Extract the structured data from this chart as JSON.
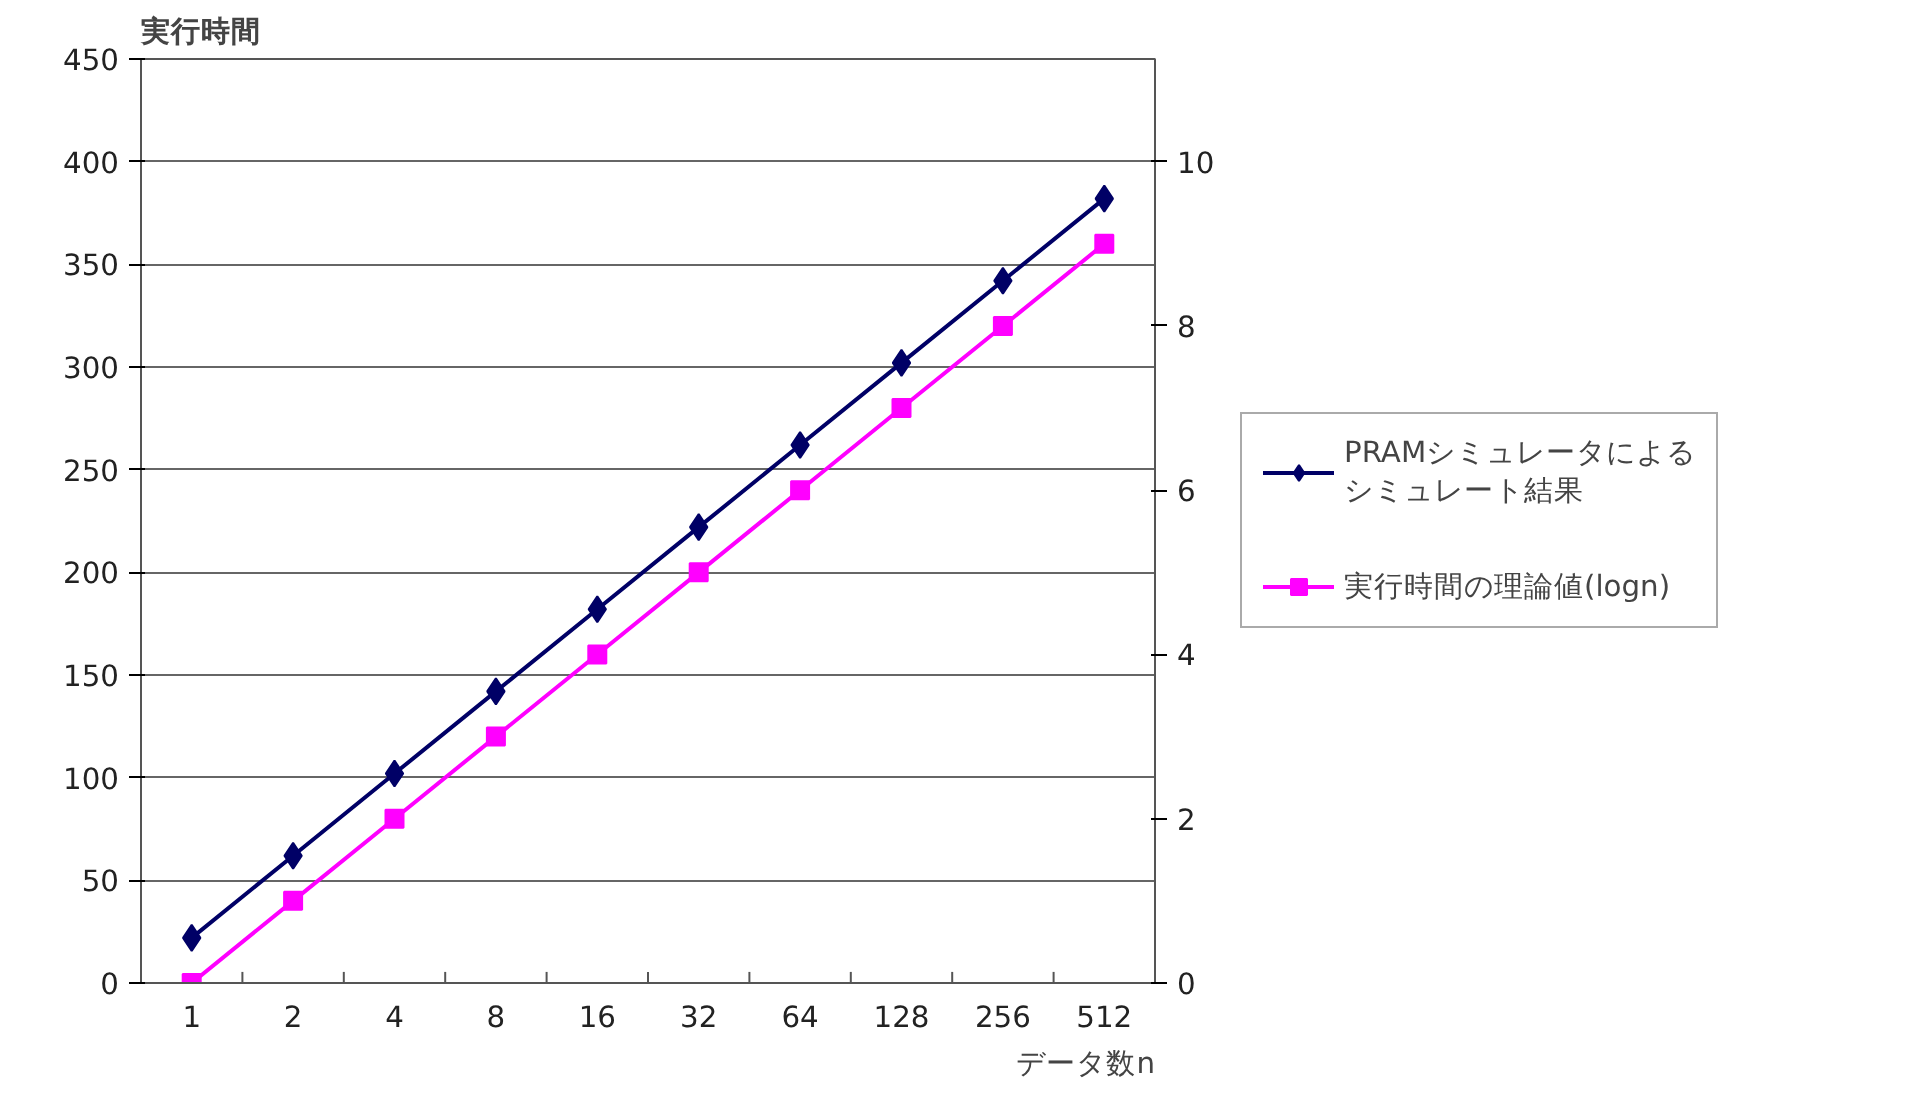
{
  "chart_data": {
    "type": "line",
    "xlabel": "データ数n",
    "ylabel": "実行時間",
    "categories": [
      "1",
      "2",
      "4",
      "8",
      "16",
      "32",
      "64",
      "128",
      "256",
      "512"
    ],
    "ylim": [
      0,
      450
    ],
    "yticks": [
      0,
      50,
      100,
      150,
      200,
      250,
      300,
      350,
      400,
      450
    ],
    "y2lim": [
      0,
      11.25
    ],
    "y2ticks": [
      0,
      2,
      4,
      6,
      8,
      10
    ],
    "grid": "y",
    "legend": "right",
    "series": [
      {
        "name": "PRAMシミュレータによるシミュレート結果",
        "color": "#000066",
        "marker": "diamond",
        "values": [
          22,
          62,
          102,
          142,
          182,
          222,
          262,
          302,
          342,
          382
        ]
      },
      {
        "name": "実行時間の理論値(logn)",
        "color": "#ff00ff",
        "marker": "square",
        "axis": "y2",
        "values": [
          0,
          1,
          2,
          3,
          4,
          5,
          6,
          7,
          8,
          9
        ]
      }
    ]
  }
}
